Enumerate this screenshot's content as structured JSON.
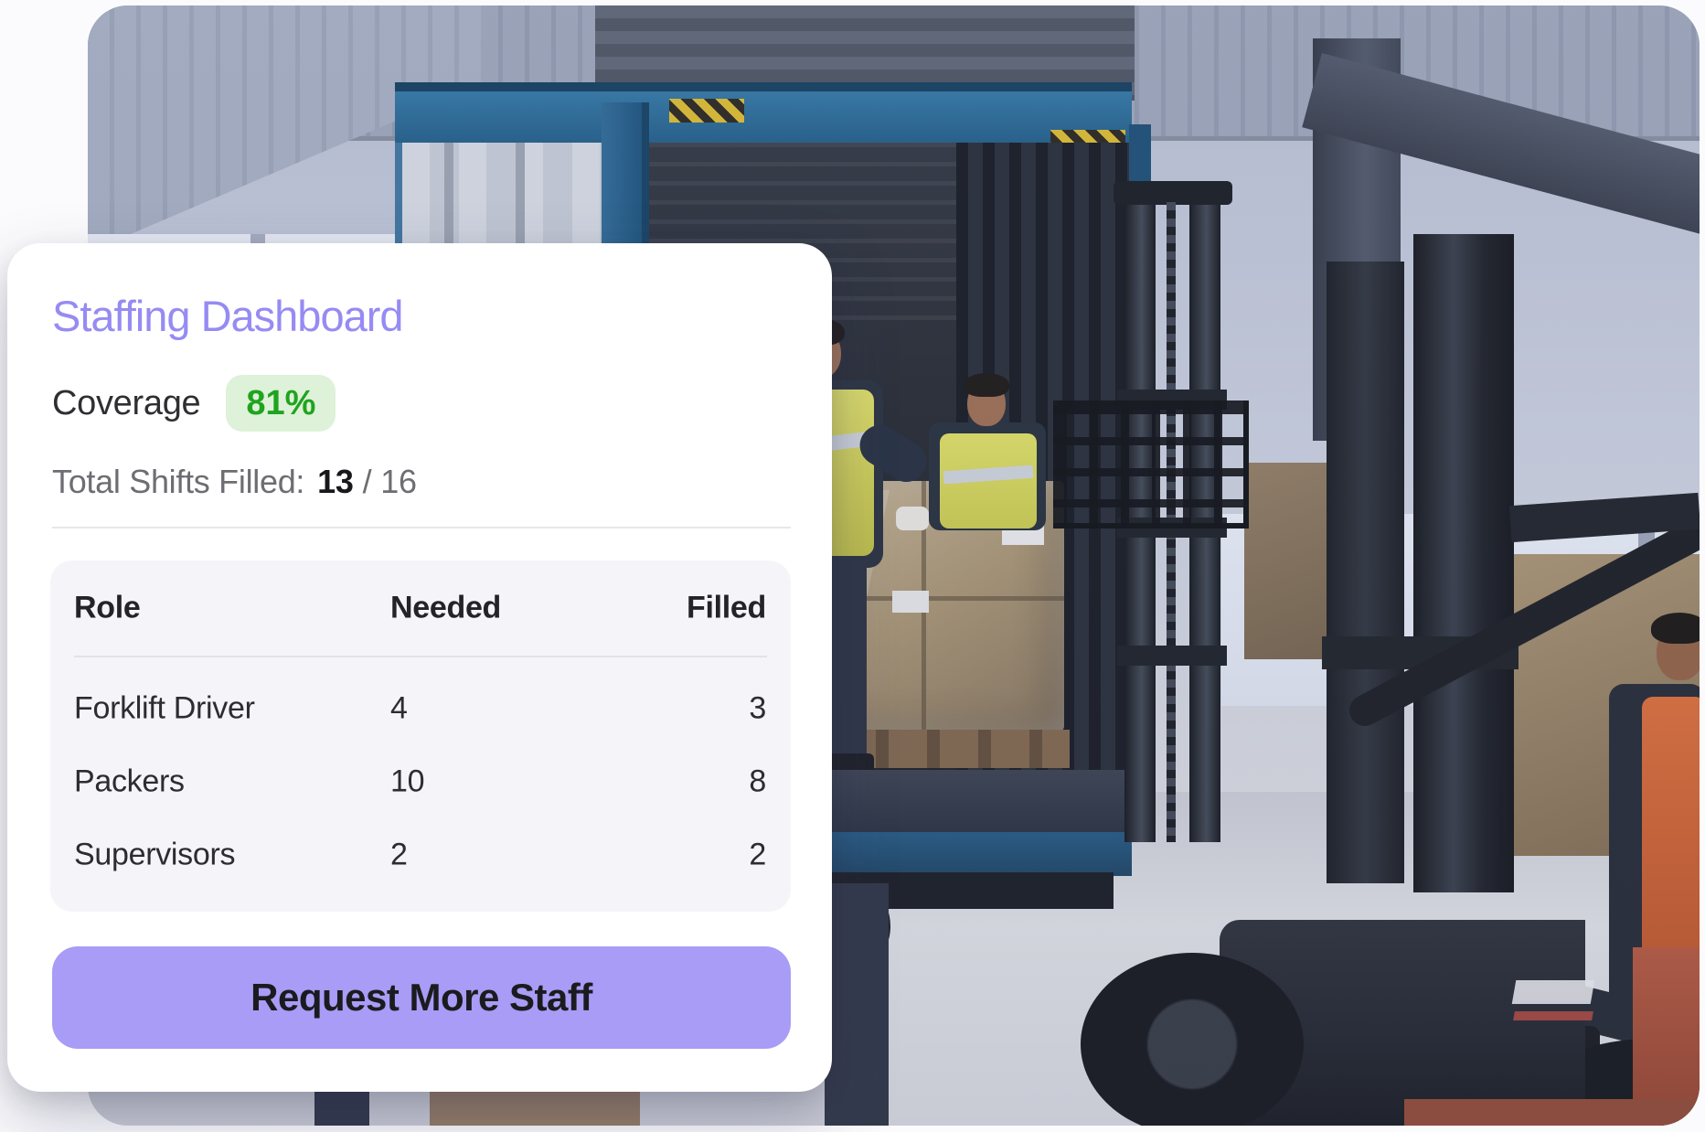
{
  "dashboard": {
    "title": "Staffing Dashboard",
    "coverage": {
      "label": "Coverage",
      "value": "81%"
    },
    "total_shifts": {
      "label": "Total Shifts Filled:",
      "filled": "13",
      "separator": "/",
      "total": "16"
    },
    "table": {
      "headers": [
        "Role",
        "Needed",
        "Filled"
      ],
      "rows": [
        {
          "role": "Forklift Driver",
          "needed": "4",
          "filled": "3"
        },
        {
          "role": "Packers",
          "needed": "10",
          "filled": "8"
        },
        {
          "role": "Supervisors",
          "needed": "2",
          "filled": "2"
        }
      ]
    },
    "cta_label": "Request More Staff"
  },
  "colors": {
    "title_purple": "#968bf3",
    "button_purple": "#a89cf6",
    "badge_background": "#def1d9",
    "badge_text_green": "#1fa41f",
    "table_panel_background": "#f5f4f8"
  },
  "photo": {
    "name": "warehouse-loading-dock-photo"
  }
}
